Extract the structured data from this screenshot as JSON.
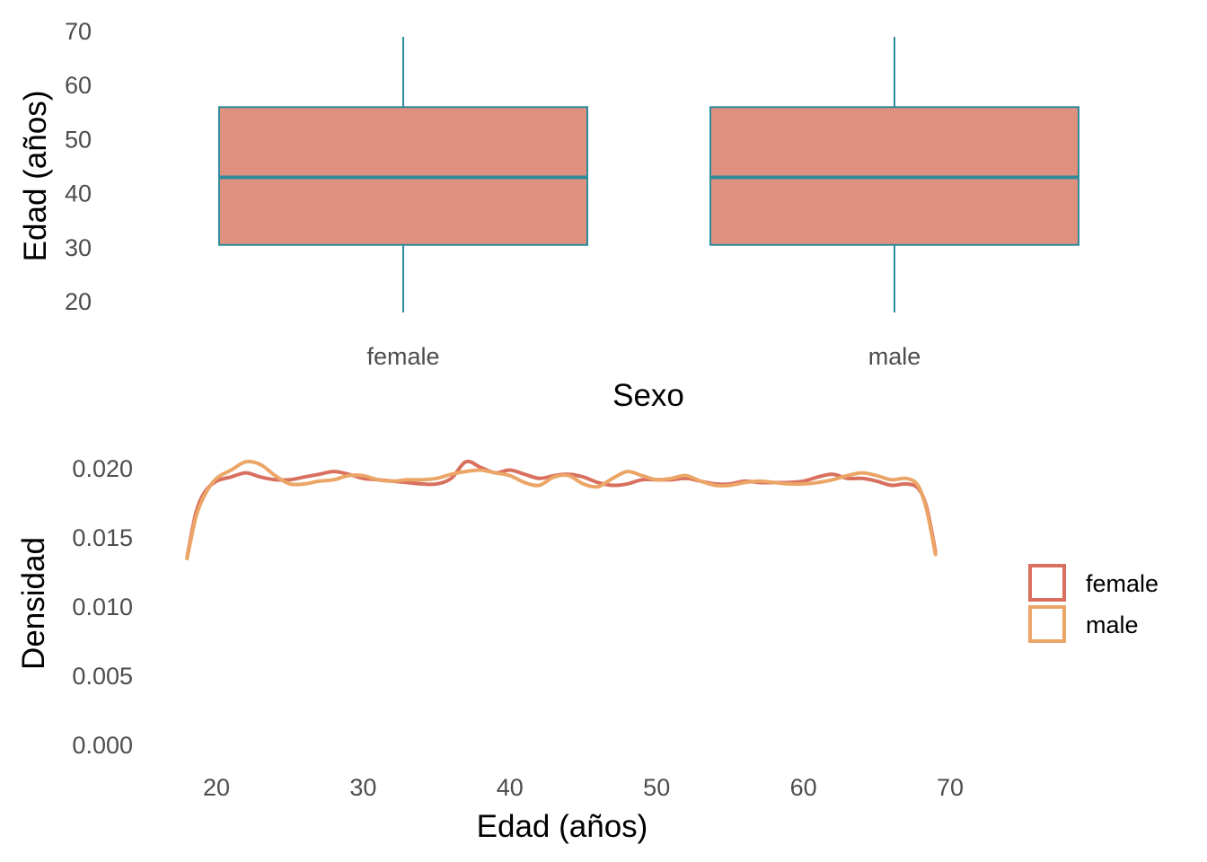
{
  "chart_data": [
    {
      "type": "boxplot",
      "xlabel": "Sexo",
      "ylabel": "Edad (años)",
      "ylim": [
        18,
        70
      ],
      "yticks": [
        20,
        30,
        40,
        50,
        60,
        70
      ],
      "categories": [
        "female",
        "male"
      ],
      "boxes": [
        {
          "name": "female",
          "min": 18,
          "q1": 30.5,
          "median": 43,
          "q3": 56,
          "max": 69
        },
        {
          "name": "male",
          "min": 18,
          "q1": 30.5,
          "median": 43,
          "q3": 56,
          "max": 69
        }
      ],
      "colors": {
        "fill": "#E0907F",
        "line": "#2E8B9A"
      },
      "grid": false
    },
    {
      "type": "line",
      "xlabel": "Edad (años)",
      "ylabel": "Densidad",
      "xlim": [
        16,
        72
      ],
      "ylim": [
        0,
        0.021
      ],
      "xticks": [
        20,
        30,
        40,
        50,
        60,
        70
      ],
      "yticks": [
        "0.000",
        "0.005",
        "0.010",
        "0.015",
        "0.020"
      ],
      "legend_position": "right",
      "grid": false,
      "series": [
        {
          "name": "female",
          "color": "#D9705F",
          "x": [
            18,
            18.6,
            19.2,
            20,
            21,
            22,
            23,
            24,
            25,
            26,
            27,
            28,
            29,
            30,
            31,
            32,
            33,
            34,
            35,
            36,
            37,
            38,
            39,
            40,
            41,
            42,
            43,
            44,
            45,
            46,
            47,
            48,
            49,
            50,
            51,
            52,
            53,
            54,
            55,
            56,
            57,
            58,
            59,
            60,
            61,
            62,
            63,
            64,
            65,
            66,
            67,
            67.8,
            68.4,
            69
          ],
          "values": [
            0.0136,
            0.0168,
            0.0183,
            0.0191,
            0.0194,
            0.0197,
            0.0194,
            0.0192,
            0.0192,
            0.0194,
            0.0196,
            0.0198,
            0.0196,
            0.0193,
            0.0192,
            0.0191,
            0.019,
            0.0189,
            0.0189,
            0.0193,
            0.0205,
            0.0201,
            0.0197,
            0.0199,
            0.0196,
            0.0193,
            0.0195,
            0.0196,
            0.0194,
            0.019,
            0.0188,
            0.0189,
            0.0192,
            0.0192,
            0.0192,
            0.0193,
            0.0191,
            0.0189,
            0.0189,
            0.0191,
            0.019,
            0.019,
            0.019,
            0.0191,
            0.0194,
            0.0196,
            0.0193,
            0.0193,
            0.0191,
            0.0188,
            0.0189,
            0.0186,
            0.0172,
            0.014
          ]
        },
        {
          "name": "male",
          "color": "#EBA567",
          "x": [
            18,
            18.6,
            19.2,
            20,
            21,
            22,
            23,
            24,
            25,
            26,
            27,
            28,
            29,
            30,
            31,
            32,
            33,
            34,
            35,
            36,
            37,
            38,
            39,
            40,
            41,
            42,
            43,
            44,
            45,
            46,
            47,
            48,
            49,
            50,
            51,
            52,
            53,
            54,
            55,
            56,
            57,
            58,
            59,
            60,
            61,
            62,
            63,
            64,
            65,
            66,
            67,
            67.8,
            68.4,
            69
          ],
          "values": [
            0.0135,
            0.0165,
            0.0181,
            0.0193,
            0.0199,
            0.0205,
            0.0203,
            0.0195,
            0.0189,
            0.0189,
            0.0191,
            0.0192,
            0.0195,
            0.0195,
            0.0192,
            0.0191,
            0.0192,
            0.0192,
            0.0193,
            0.0196,
            0.0198,
            0.0199,
            0.0197,
            0.0195,
            0.019,
            0.0188,
            0.0194,
            0.0195,
            0.0189,
            0.0187,
            0.0193,
            0.0198,
            0.0195,
            0.0192,
            0.0193,
            0.0195,
            0.0191,
            0.0188,
            0.0188,
            0.019,
            0.0191,
            0.019,
            0.0189,
            0.0189,
            0.019,
            0.0192,
            0.0195,
            0.0197,
            0.0195,
            0.0192,
            0.0193,
            0.0188,
            0.017,
            0.0138
          ]
        }
      ]
    }
  ]
}
